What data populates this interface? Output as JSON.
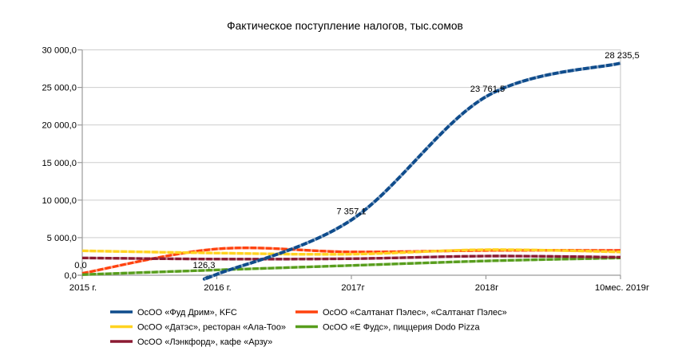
{
  "chart_data": {
    "type": "line",
    "title": "Фактическое поступление налогов, тыс.сомов",
    "categories": [
      "2015 г.",
      "2016 г.",
      "2017г",
      "2018г",
      "10мес. 2019г"
    ],
    "y_tick_labels": [
      "0,0",
      "5 000,0",
      "10 000,0",
      "15 000,0",
      "20 000,0",
      "25 000,0",
      "30 000,0"
    ],
    "ylim": [
      0,
      30000
    ],
    "y_step": 5000,
    "grid": "horizontal",
    "legend_position": "bottom",
    "line_style": "smooth",
    "colors": {
      "axis": "#9b9b9b",
      "gridline": "#cdcdcd",
      "text": "#000000",
      "background": "#ffffff"
    },
    "series": [
      {
        "name": "ОсОО «Фуд Дрим», KFC",
        "color": "#0f4c8c",
        "values": [
          0.0,
          126.3,
          7357.1,
          23761.5,
          28235.5
        ],
        "point_labels": [
          "0,0",
          "126,3",
          "7 357,1",
          "23 761,5",
          "28 235,5"
        ],
        "line_visible_from_index": 1
      },
      {
        "name": "ОсОО «Салтанат Пэлес», «Салтанат Пэлес»",
        "color": "#ff420e",
        "values": [
          250,
          3500,
          3100,
          3300,
          3300
        ]
      },
      {
        "name": "ОсОО «Датэс», ресторан «Ала-Тоо»",
        "color": "#ffd320",
        "values": [
          3250,
          2950,
          2800,
          3400,
          3100
        ]
      },
      {
        "name": "ОсОО «Е Фудс», пиццерия Dodo Pizza",
        "color": "#579d1c",
        "values": [
          80,
          700,
          1300,
          1900,
          2300
        ]
      },
      {
        "name": "ОсОО «Лэнкфорд», кафе «Арзу»",
        "color": "#8b1a32",
        "values": [
          2300,
          2150,
          2200,
          2550,
          2400
        ]
      }
    ]
  }
}
